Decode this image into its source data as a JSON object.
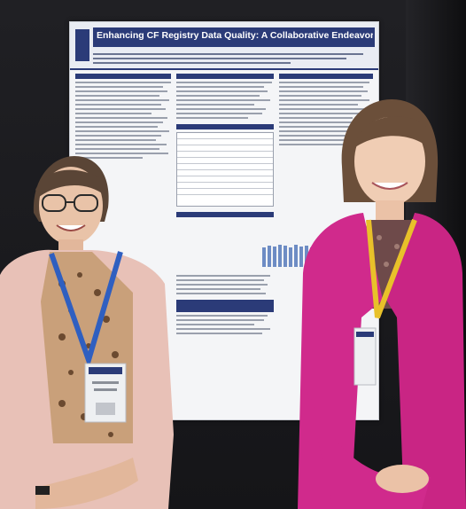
{
  "poster": {
    "title": "Enhancing CF Registry Data Quality: A Collaborative Endeavor"
  },
  "colors": {
    "poster_navy": "#2b3b78",
    "left_blazer": "#e8c1b7",
    "right_jacket": "#d02a8c",
    "lanyard_left": "#2f5fc0",
    "lanyard_right": "#e8c12a"
  }
}
